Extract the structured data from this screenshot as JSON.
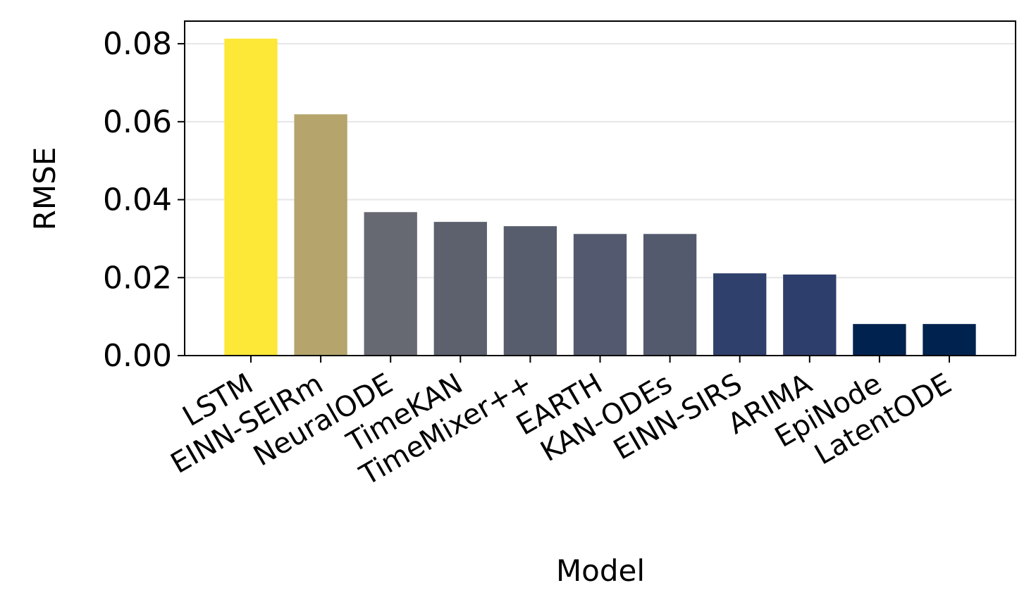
{
  "chart_data": {
    "type": "bar",
    "x_label": "Model",
    "y_label": "RMSE",
    "categories": [
      "LSTM",
      "EINN-SEIRm",
      "NeuralODE",
      "TimeKAN",
      "TimeMixer++",
      "EARTH",
      "KAN-ODEs",
      "EINN-SIRS",
      "ARIMA",
      "EpiNode",
      "LatentODE"
    ],
    "values": [
      0.0813,
      0.0619,
      0.0368,
      0.0343,
      0.0332,
      0.0312,
      0.0312,
      0.0211,
      0.0208,
      0.0081,
      0.0081
    ],
    "colors": [
      "#fde737",
      "#b5a56c",
      "#666872",
      "#5d616e",
      "#575d6d",
      "#53596e",
      "#535a6e",
      "#2e406b",
      "#2e3e6c",
      "#00224e",
      "#00224e"
    ],
    "ylim": [
      0,
      0.0858
    ],
    "yticks": [
      {
        "value": 0,
        "label": "0.00"
      },
      {
        "value": 0.02,
        "label": "0.02"
      },
      {
        "value": 0.04,
        "label": "0.04"
      },
      {
        "value": 0.06,
        "label": "0.06"
      },
      {
        "value": 0.08,
        "label": "0.08"
      }
    ],
    "grid": true
  }
}
